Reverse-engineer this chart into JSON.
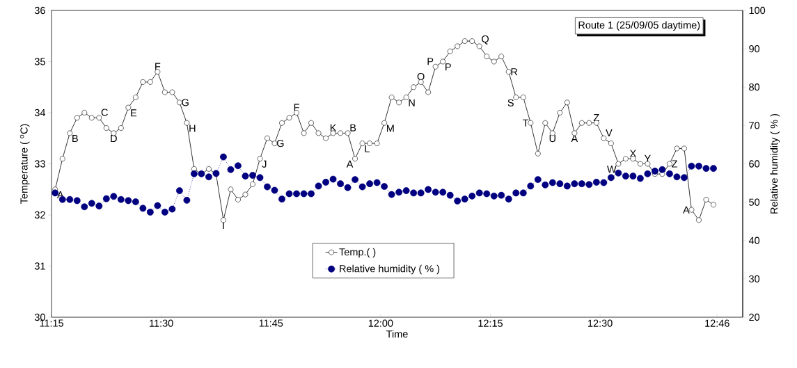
{
  "chart_data": {
    "type": "line",
    "title": "Route 1 (25/09/05 daytime)",
    "xlabel": "Time",
    "ylabel": "Temperature ( $^{o}$C)",
    "y2label": "Relative humidity ( % )",
    "x": [
      11.258333,
      11.275,
      11.291667,
      11.308333,
      11.325,
      11.341667,
      11.358333,
      11.375,
      11.391667,
      11.408333,
      11.425,
      11.441667,
      11.458333,
      11.475,
      11.491667,
      11.508333,
      11.525,
      11.541667,
      11.558333,
      11.575,
      11.591667,
      11.608333,
      11.625,
      11.641667,
      11.658333,
      11.675,
      11.691667,
      11.708333,
      11.725,
      11.741667,
      11.758333,
      11.775,
      11.791667,
      11.808333,
      11.825,
      11.841667,
      11.858333,
      11.875,
      11.891667,
      11.908333,
      11.925,
      11.941667,
      11.958333,
      11.975,
      11.991667,
      12.008333,
      12.025,
      12.041667,
      12.058333,
      12.075,
      12.091667,
      12.108333,
      12.125,
      12.141667,
      12.158333,
      12.175,
      12.191667,
      12.208333,
      12.225,
      12.241667,
      12.258333,
      12.275,
      12.291667,
      12.308333,
      12.325,
      12.341667,
      12.358333,
      12.375,
      12.391667,
      12.408333,
      12.425,
      12.441667,
      12.458333,
      12.475,
      12.491667,
      12.508333,
      12.525,
      12.541667,
      12.558333,
      12.575,
      12.591667,
      12.608333,
      12.625,
      12.641667,
      12.658333,
      12.675,
      12.691667,
      12.708333,
      12.725,
      12.741667,
      12.758333
    ],
    "series": [
      {
        "name": "Temp.( )",
        "color": "#000000",
        "marker": "circle",
        "line_style": "solid",
        "values": [
          32.5,
          33.1,
          33.6,
          33.9,
          34.0,
          33.9,
          33.9,
          33.7,
          33.6,
          33.7,
          34.1,
          34.3,
          34.6,
          34.6,
          34.8,
          34.4,
          34.4,
          34.2,
          33.8,
          32.9,
          32.8,
          32.9,
          32.8,
          31.9,
          32.5,
          32.3,
          32.4,
          32.6,
          33.1,
          33.5,
          33.4,
          33.8,
          33.9,
          34.0,
          33.6,
          33.8,
          33.6,
          33.5,
          33.6,
          33.6,
          33.6,
          33.1,
          33.4,
          33.4,
          33.4,
          33.8,
          34.3,
          34.2,
          34.3,
          34.5,
          34.6,
          34.4,
          34.9,
          35.0,
          35.2,
          35.3,
          35.4,
          35.4,
          35.3,
          35.1,
          35.0,
          35.1,
          34.8,
          34.3,
          34.3,
          33.8,
          33.2,
          33.8,
          33.6,
          34.0,
          34.2,
          33.6,
          33.8,
          33.8,
          33.8,
          33.5,
          33.4,
          33.0,
          33.1,
          33.1,
          33.0,
          33.0,
          32.8,
          32.8,
          33.0,
          33.3,
          33.3,
          32.1,
          31.9,
          32.3,
          32.2
        ]
      },
      {
        "name": "Relative humidity ( % )",
        "color": "#000080",
        "marker": "circle",
        "line_style": "dotted",
        "axis": "y2",
        "values": [
          52.4,
          50.7,
          50.7,
          50.4,
          48.8,
          49.7,
          49.0,
          50.9,
          51.5,
          50.7,
          50.4,
          50.1,
          48.4,
          47.4,
          49.1,
          47.4,
          48.2,
          53.0,
          50.5,
          57.4,
          57.4,
          56.6,
          57.5,
          61.8,
          58.5,
          59.5,
          56.8,
          57.0,
          56.4,
          54.0,
          53.1,
          50.8,
          52.2,
          52.2,
          52.2,
          52.2,
          54.2,
          55.2,
          56.0,
          54.8,
          53.8,
          55.9,
          54.0,
          54.8,
          55.1,
          54.1,
          52.0,
          52.6,
          53.0,
          52.4,
          52.4,
          53.3,
          52.6,
          52.6,
          51.8,
          50.3,
          50.8,
          51.6,
          52.4,
          52.2,
          51.6,
          51.8,
          50.8,
          52.4,
          52.4,
          54.2,
          55.9,
          54.5,
          55.1,
          54.8,
          54.2,
          54.8,
          54.8,
          54.6,
          55.2,
          55.1,
          56.4,
          57.6,
          56.8,
          56.8,
          56.2,
          57.4,
          58.1,
          58.5,
          57.4,
          56.6,
          56.4,
          59.4,
          59.4,
          58.8,
          58.8
        ]
      }
    ],
    "xlim": [
      11.25,
      12.825
    ],
    "xticks": [
      {
        "value": 11.25,
        "label": "11:15"
      },
      {
        "value": 11.5,
        "label": "11:30"
      },
      {
        "value": 11.75,
        "label": "11:45"
      },
      {
        "value": 12.0,
        "label": "12:00"
      },
      {
        "value": 12.25,
        "label": "12:15"
      },
      {
        "value": 12.5,
        "label": "12:30"
      },
      {
        "value": 12.766667,
        "label": "12:46"
      }
    ],
    "ylim": [
      30,
      36
    ],
    "yticks": [
      30,
      31,
      32,
      33,
      34,
      35,
      36
    ],
    "y2lim": [
      20,
      100
    ],
    "y2ticks": [
      20,
      30,
      40,
      50,
      60,
      70,
      80,
      90,
      100
    ],
    "legend": "bottom",
    "annotations": [
      {
        "text": "A",
        "x": 11.258333,
        "y": 32.5
      },
      {
        "text": "B",
        "x": 11.291667,
        "y": 33.6
      },
      {
        "text": "C",
        "x": 11.358333,
        "y": 33.9
      },
      {
        "text": "D",
        "x": 11.391667,
        "y": 33.6
      },
      {
        "text": "E",
        "x": 11.425,
        "y": 34.1
      },
      {
        "text": "F",
        "x": 11.491667,
        "y": 34.8
      },
      {
        "text": "G",
        "x": 11.541667,
        "y": 34.2
      },
      {
        "text": "H",
        "x": 11.558333,
        "y": 33.8
      },
      {
        "text": "I",
        "x": 11.641667,
        "y": 31.9
      },
      {
        "text": "J",
        "x": 11.725,
        "y": 33.1
      },
      {
        "text": "G",
        "x": 11.758333,
        "y": 33.4
      },
      {
        "text": "F",
        "x": 11.808333,
        "y": 34.0
      },
      {
        "text": "K",
        "x": 11.891667,
        "y": 33.6
      },
      {
        "text": "B",
        "x": 11.925,
        "y": 33.6
      },
      {
        "text": "A",
        "x": 11.941667,
        "y": 33.1
      },
      {
        "text": "L",
        "x": 11.958333,
        "y": 33.4
      },
      {
        "text": "M",
        "x": 12.008333,
        "y": 33.8
      },
      {
        "text": "N",
        "x": 12.058333,
        "y": 34.3
      },
      {
        "text": "O",
        "x": 12.091667,
        "y": 34.6
      },
      {
        "text": "P",
        "x": 12.125,
        "y": 34.9
      },
      {
        "text": "P",
        "x": 12.141667,
        "y": 35.0
      },
      {
        "text": "Q",
        "x": 12.225,
        "y": 35.3
      },
      {
        "text": "R",
        "x": 12.291667,
        "y": 34.8
      },
      {
        "text": "S",
        "x": 12.308333,
        "y": 34.3
      },
      {
        "text": "T",
        "x": 12.341667,
        "y": 33.8
      },
      {
        "text": "U",
        "x": 12.391667,
        "y": 33.6
      },
      {
        "text": "A",
        "x": 12.441667,
        "y": 33.6
      },
      {
        "text": "Z",
        "x": 12.491667,
        "y": 33.8
      },
      {
        "text": "V",
        "x": 12.508333,
        "y": 33.5
      },
      {
        "text": "W",
        "x": 12.541667,
        "y": 33.0
      },
      {
        "text": "X",
        "x": 12.575,
        "y": 33.1
      },
      {
        "text": "Y",
        "x": 12.608333,
        "y": 33.0
      },
      {
        "text": "Z",
        "x": 12.658333,
        "y": 33.0
      },
      {
        "text": "A",
        "x": 12.708333,
        "y": 32.1
      }
    ]
  }
}
